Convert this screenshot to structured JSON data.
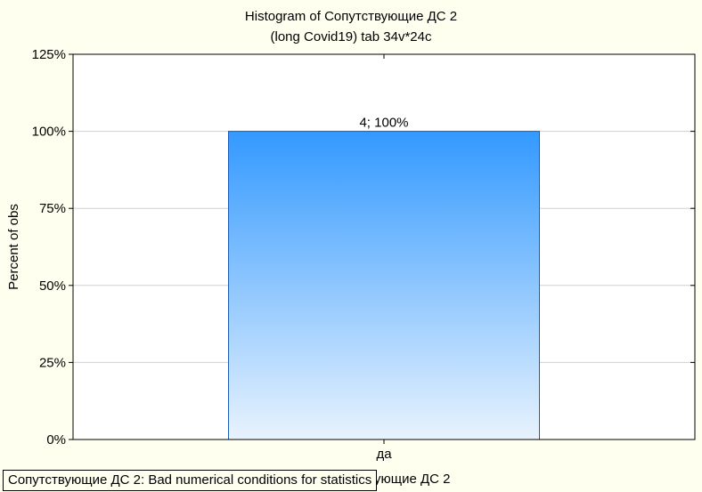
{
  "chart_data": {
    "type": "bar",
    "title": "Histogram of Сопутствующие ДС 2",
    "subtitle": "(long Covid19) tab 34v*24c",
    "xlabel": "Сопутствующие ДС 2",
    "ylabel": "Percent of obs",
    "categories": [
      "да"
    ],
    "values": [
      100
    ],
    "counts": [
      4
    ],
    "data_labels": [
      "4; 100%"
    ],
    "ylim": [
      0,
      125
    ],
    "yticks": [
      0,
      25,
      50,
      75,
      100,
      125
    ],
    "ytick_labels": [
      "0%",
      "25%",
      "50%",
      "75%",
      "100%",
      "125%"
    ],
    "grid": true,
    "colors": {
      "bar_top": "#3399ff",
      "bar_bottom": "#e8f3fd",
      "bar_stroke": "#1a5cb8",
      "plot_bg": "#ffffff",
      "page_bg": "#fffff0",
      "gridline": "#d0d0d0"
    }
  },
  "status_message": "Сопутствующие ДС 2:  Bad numerical conditions for statistics"
}
